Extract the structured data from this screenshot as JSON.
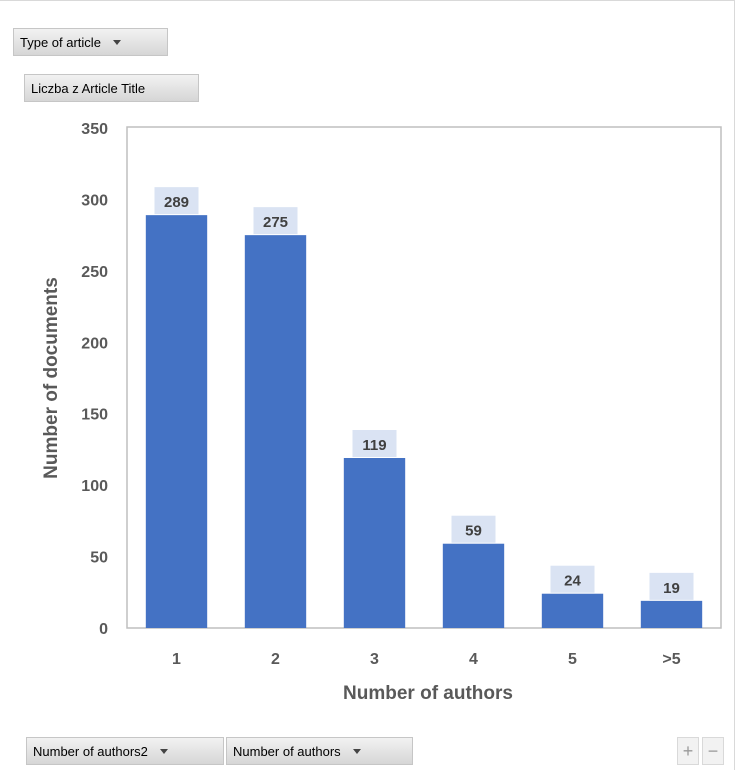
{
  "filters": {
    "report_filter": "Type of article",
    "value_field": "Liczba z Article Title",
    "axis_fields": [
      "Number of authors2",
      "Number of authors"
    ],
    "zoom_in": "+",
    "zoom_out": "−"
  },
  "colors": {
    "bar": "#4472c4",
    "label_bg": "#dae3f3",
    "plot_border": "#bfbfbf"
  },
  "chart_data": {
    "type": "bar",
    "categories": [
      "1",
      "2",
      "3",
      "4",
      "5",
      ">5"
    ],
    "values": [
      289,
      275,
      119,
      59,
      24,
      19
    ],
    "xlabel": "Number of authors",
    "ylabel": "Number of documents",
    "ylim": [
      0,
      350
    ],
    "yticks": [
      0,
      50,
      100,
      150,
      200,
      250,
      300,
      350
    ],
    "grid": false,
    "legend": false,
    "data_labels": true
  }
}
